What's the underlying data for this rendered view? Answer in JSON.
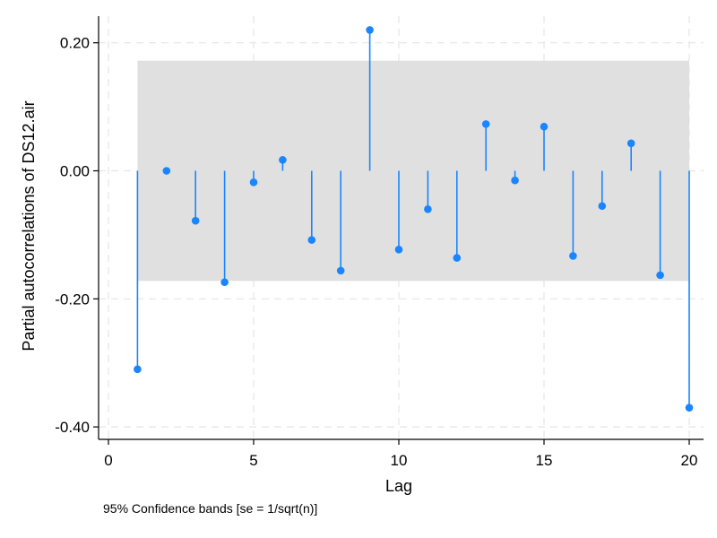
{
  "chart_data": {
    "type": "scatter",
    "style": "stem",
    "xlabel": "Lag",
    "ylabel": "Partial autocorrelations of DS12.air",
    "note": "95% Confidence bands [se = 1/sqrt(n)]",
    "xlim": [
      0,
      20
    ],
    "ylim": [
      -0.4,
      0.22
    ],
    "x_ticks": [
      0,
      5,
      10,
      15,
      20
    ],
    "x_tick_labels": [
      "0",
      "5",
      "10",
      "15",
      "20"
    ],
    "y_ticks": [
      0.2,
      0.0,
      -0.2,
      -0.4
    ],
    "y_tick_labels": [
      "0.20",
      "0.00",
      "-0.20",
      "-0.40"
    ],
    "grid": true,
    "confidence_band": [
      -0.172,
      0.172
    ],
    "colors": {
      "stem": "#1a85ff",
      "band": "#e0e0e0",
      "grid": "#e6e6e6"
    },
    "series": [
      {
        "x": [
          1,
          2,
          3,
          4,
          5,
          6,
          7,
          8,
          9,
          10,
          11,
          12,
          13,
          14,
          15,
          16,
          17,
          18,
          19,
          20
        ],
        "values": [
          -0.31,
          0.0,
          -0.078,
          -0.174,
          -0.018,
          0.017,
          -0.108,
          -0.156,
          0.22,
          -0.123,
          -0.06,
          -0.136,
          0.073,
          -0.015,
          0.069,
          -0.133,
          -0.055,
          0.043,
          -0.163,
          -0.37
        ]
      }
    ]
  }
}
